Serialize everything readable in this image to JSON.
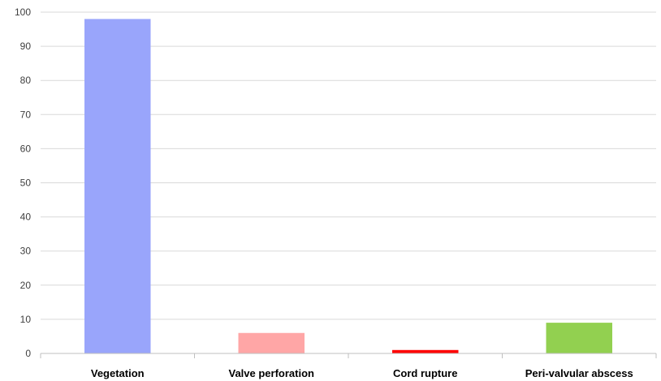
{
  "chart_data": {
    "type": "bar",
    "title": "",
    "xlabel": "",
    "ylabel": "",
    "categories": [
      "Vegetation",
      "Valve perforation",
      "Cord rupture",
      "Peri-valvular abscess"
    ],
    "values": [
      98,
      6,
      1,
      9
    ],
    "colors": [
      "#99a5fb",
      "#ffa6a6",
      "#ff0000",
      "#92d050"
    ],
    "ylim": [
      0,
      100
    ],
    "yticks": [
      0,
      10,
      20,
      30,
      40,
      50,
      60,
      70,
      80,
      90,
      100
    ],
    "grid": true,
    "legend": "none"
  }
}
